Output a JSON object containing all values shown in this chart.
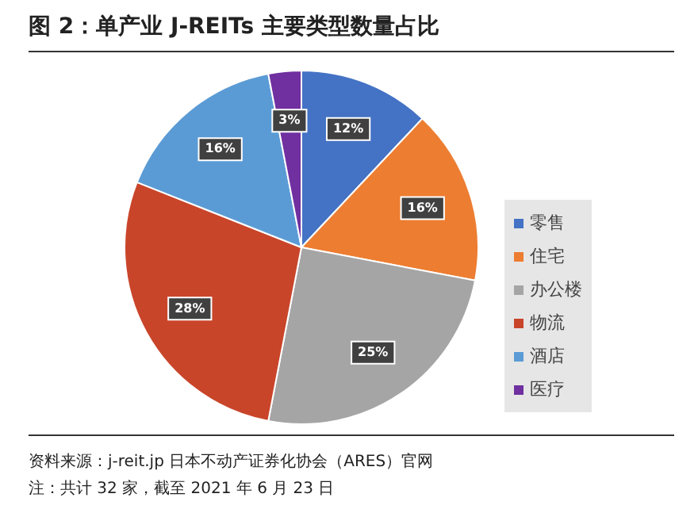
{
  "chart_data": {
    "type": "pie",
    "title": "图 2：单产业 J-REITs 主要类型数量占比",
    "categories": [
      "零售",
      "住宅",
      "办公楼",
      "物流",
      "酒店",
      "医疗"
    ],
    "values": [
      12,
      16,
      25,
      28,
      16,
      3
    ],
    "colors": [
      "#4472c4",
      "#ed7d31",
      "#a5a5a5",
      "#c9452a",
      "#5b9bd5",
      "#7030a0"
    ],
    "value_labels": [
      "12%",
      "16%",
      "25%",
      "28%",
      "16%",
      "3%"
    ],
    "legend": "right",
    "annotations": [
      "资料来源：j-reit.jp 日本不动产证券化协会（ARES）官网",
      "注：共计 32 家，截至 2021 年 6 月 23 日"
    ]
  }
}
